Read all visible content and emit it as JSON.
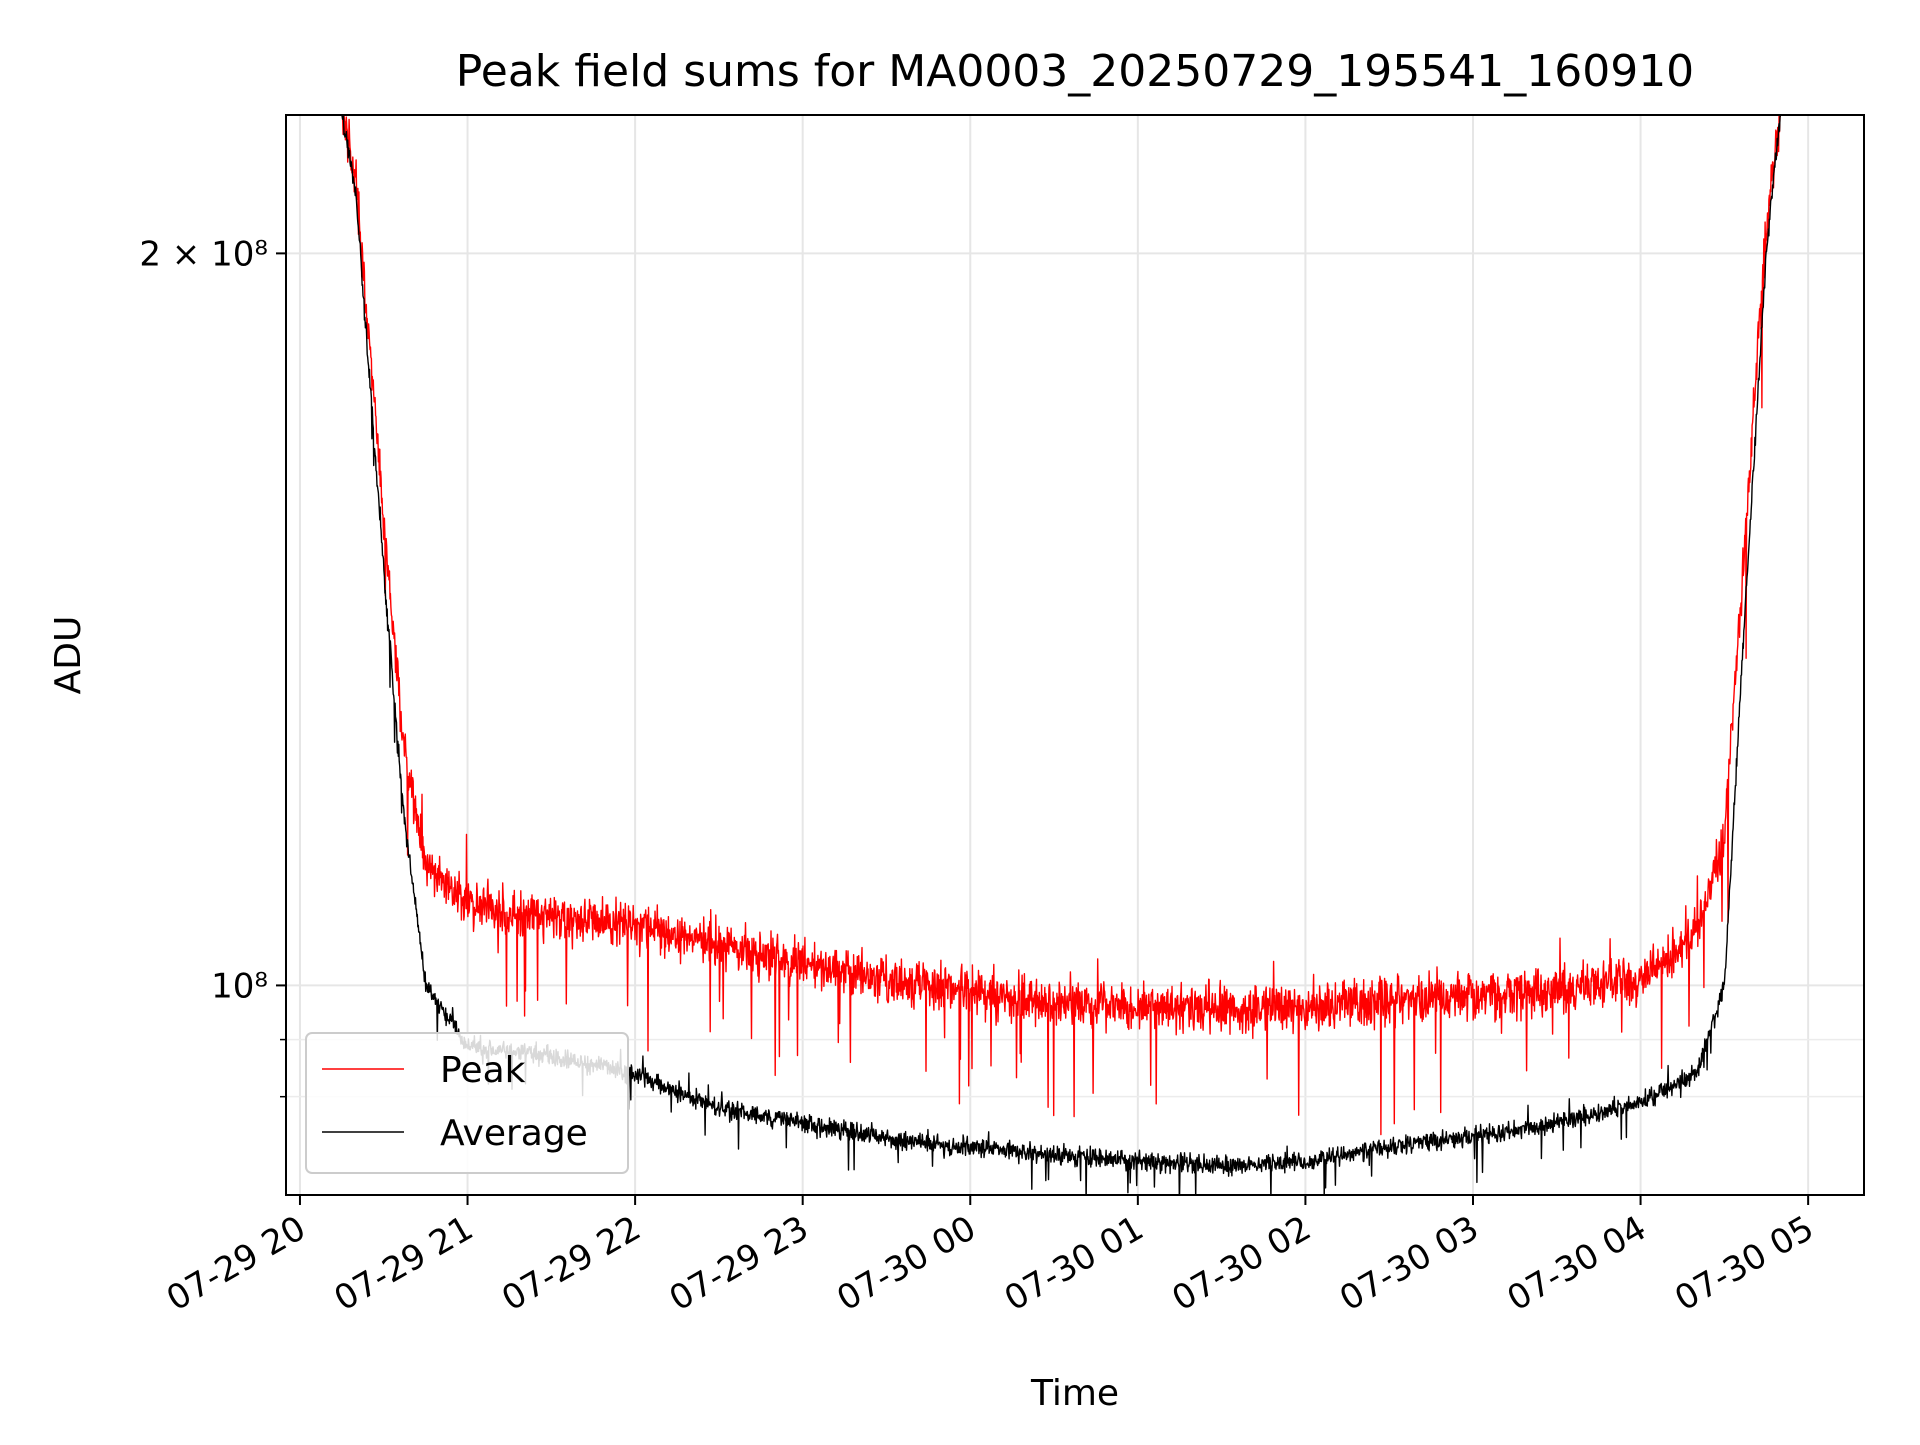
{
  "chart_data": {
    "type": "line",
    "title": "Peak field sums for MA0003_20250729_195541_160910",
    "xlabel": "Time",
    "ylabel": "ADU",
    "x_range": [
      "2025-07-29 19:55",
      "2025-07-30 05:20"
    ],
    "x_ticks": [
      "07-29 20",
      "07-29 21",
      "07-29 22",
      "07-29 23",
      "07-30 00",
      "07-30 01",
      "07-30 02",
      "07-30 03",
      "07-30 04",
      "07-30 05"
    ],
    "y_scale": "log",
    "ylim": [
      82000000,
      228000000
    ],
    "y_ticks": [
      {
        "value": 200000000,
        "label": "2 × 10⁸"
      },
      {
        "value": 100000000,
        "label": "10⁸"
      }
    ],
    "y_minor_ticks": [
      90000000,
      95000000
    ],
    "grid": true,
    "legend_placement": "lower-left",
    "series": [
      {
        "name": "Peak",
        "color": "#ff0000",
        "points": [
          [
            "2025-07-29 19:55",
            228000000
          ],
          [
            "2025-07-29 20:15",
            228000000
          ],
          [
            "2025-07-29 20:20",
            215000000
          ],
          [
            "2025-07-29 20:30",
            155000000
          ],
          [
            "2025-07-29 20:37",
            126000000
          ],
          [
            "2025-07-29 20:45",
            112000000
          ],
          [
            "2025-07-29 21:00",
            108000000
          ],
          [
            "2025-07-29 21:30",
            106500000
          ],
          [
            "2025-07-29 22:00",
            106000000
          ],
          [
            "2025-07-29 22:30",
            104000000
          ],
          [
            "2025-07-29 23:00",
            102000000
          ],
          [
            "2025-07-29 23:30",
            100500000
          ],
          [
            "2025-07-30 00:00",
            99500000
          ],
          [
            "2025-07-30 00:30",
            98500000
          ],
          [
            "2025-07-30 01:00",
            98000000
          ],
          [
            "2025-07-30 01:30",
            97800000
          ],
          [
            "2025-07-30 02:00",
            98000000
          ],
          [
            "2025-07-30 02:30",
            98500000
          ],
          [
            "2025-07-30 03:00",
            99000000
          ],
          [
            "2025-07-30 03:30",
            99500000
          ],
          [
            "2025-07-30 04:00",
            100500000
          ],
          [
            "2025-07-30 04:20",
            105000000
          ],
          [
            "2025-07-30 04:30",
            115000000
          ],
          [
            "2025-07-30 04:37",
            150000000
          ],
          [
            "2025-07-30 04:45",
            205000000
          ],
          [
            "2025-07-30 04:50",
            228000000
          ],
          [
            "2025-07-30 05:20",
            228000000
          ]
        ],
        "noise_pct": 3.2
      },
      {
        "name": "Average",
        "color": "#000000",
        "points": [
          [
            "2025-07-29 19:55",
            228000000
          ],
          [
            "2025-07-29 20:15",
            228000000
          ],
          [
            "2025-07-29 20:20",
            212000000
          ],
          [
            "2025-07-29 20:30",
            148000000
          ],
          [
            "2025-07-29 20:37",
            118000000
          ],
          [
            "2025-07-29 20:45",
            100000000
          ],
          [
            "2025-07-29 21:00",
            94500000
          ],
          [
            "2025-07-29 21:30",
            93500000
          ],
          [
            "2025-07-29 22:00",
            92000000
          ],
          [
            "2025-07-29 22:30",
            89000000
          ],
          [
            "2025-07-29 23:00",
            87800000
          ],
          [
            "2025-07-29 23:30",
            86500000
          ],
          [
            "2025-07-30 00:00",
            85800000
          ],
          [
            "2025-07-30 00:30",
            85200000
          ],
          [
            "2025-07-30 01:00",
            84700000
          ],
          [
            "2025-07-30 01:30",
            84300000
          ],
          [
            "2025-07-30 02:00",
            84600000
          ],
          [
            "2025-07-30 02:30",
            85800000
          ],
          [
            "2025-07-30 03:00",
            86700000
          ],
          [
            "2025-07-30 03:30",
            87800000
          ],
          [
            "2025-07-30 04:00",
            89500000
          ],
          [
            "2025-07-30 04:20",
            92000000
          ],
          [
            "2025-07-30 04:30",
            100000000
          ],
          [
            "2025-07-30 04:37",
            140000000
          ],
          [
            "2025-07-30 04:45",
            200000000
          ],
          [
            "2025-07-30 04:50",
            228000000
          ],
          [
            "2025-07-30 05:20",
            228000000
          ]
        ],
        "noise_pct": 1.3
      }
    ]
  }
}
